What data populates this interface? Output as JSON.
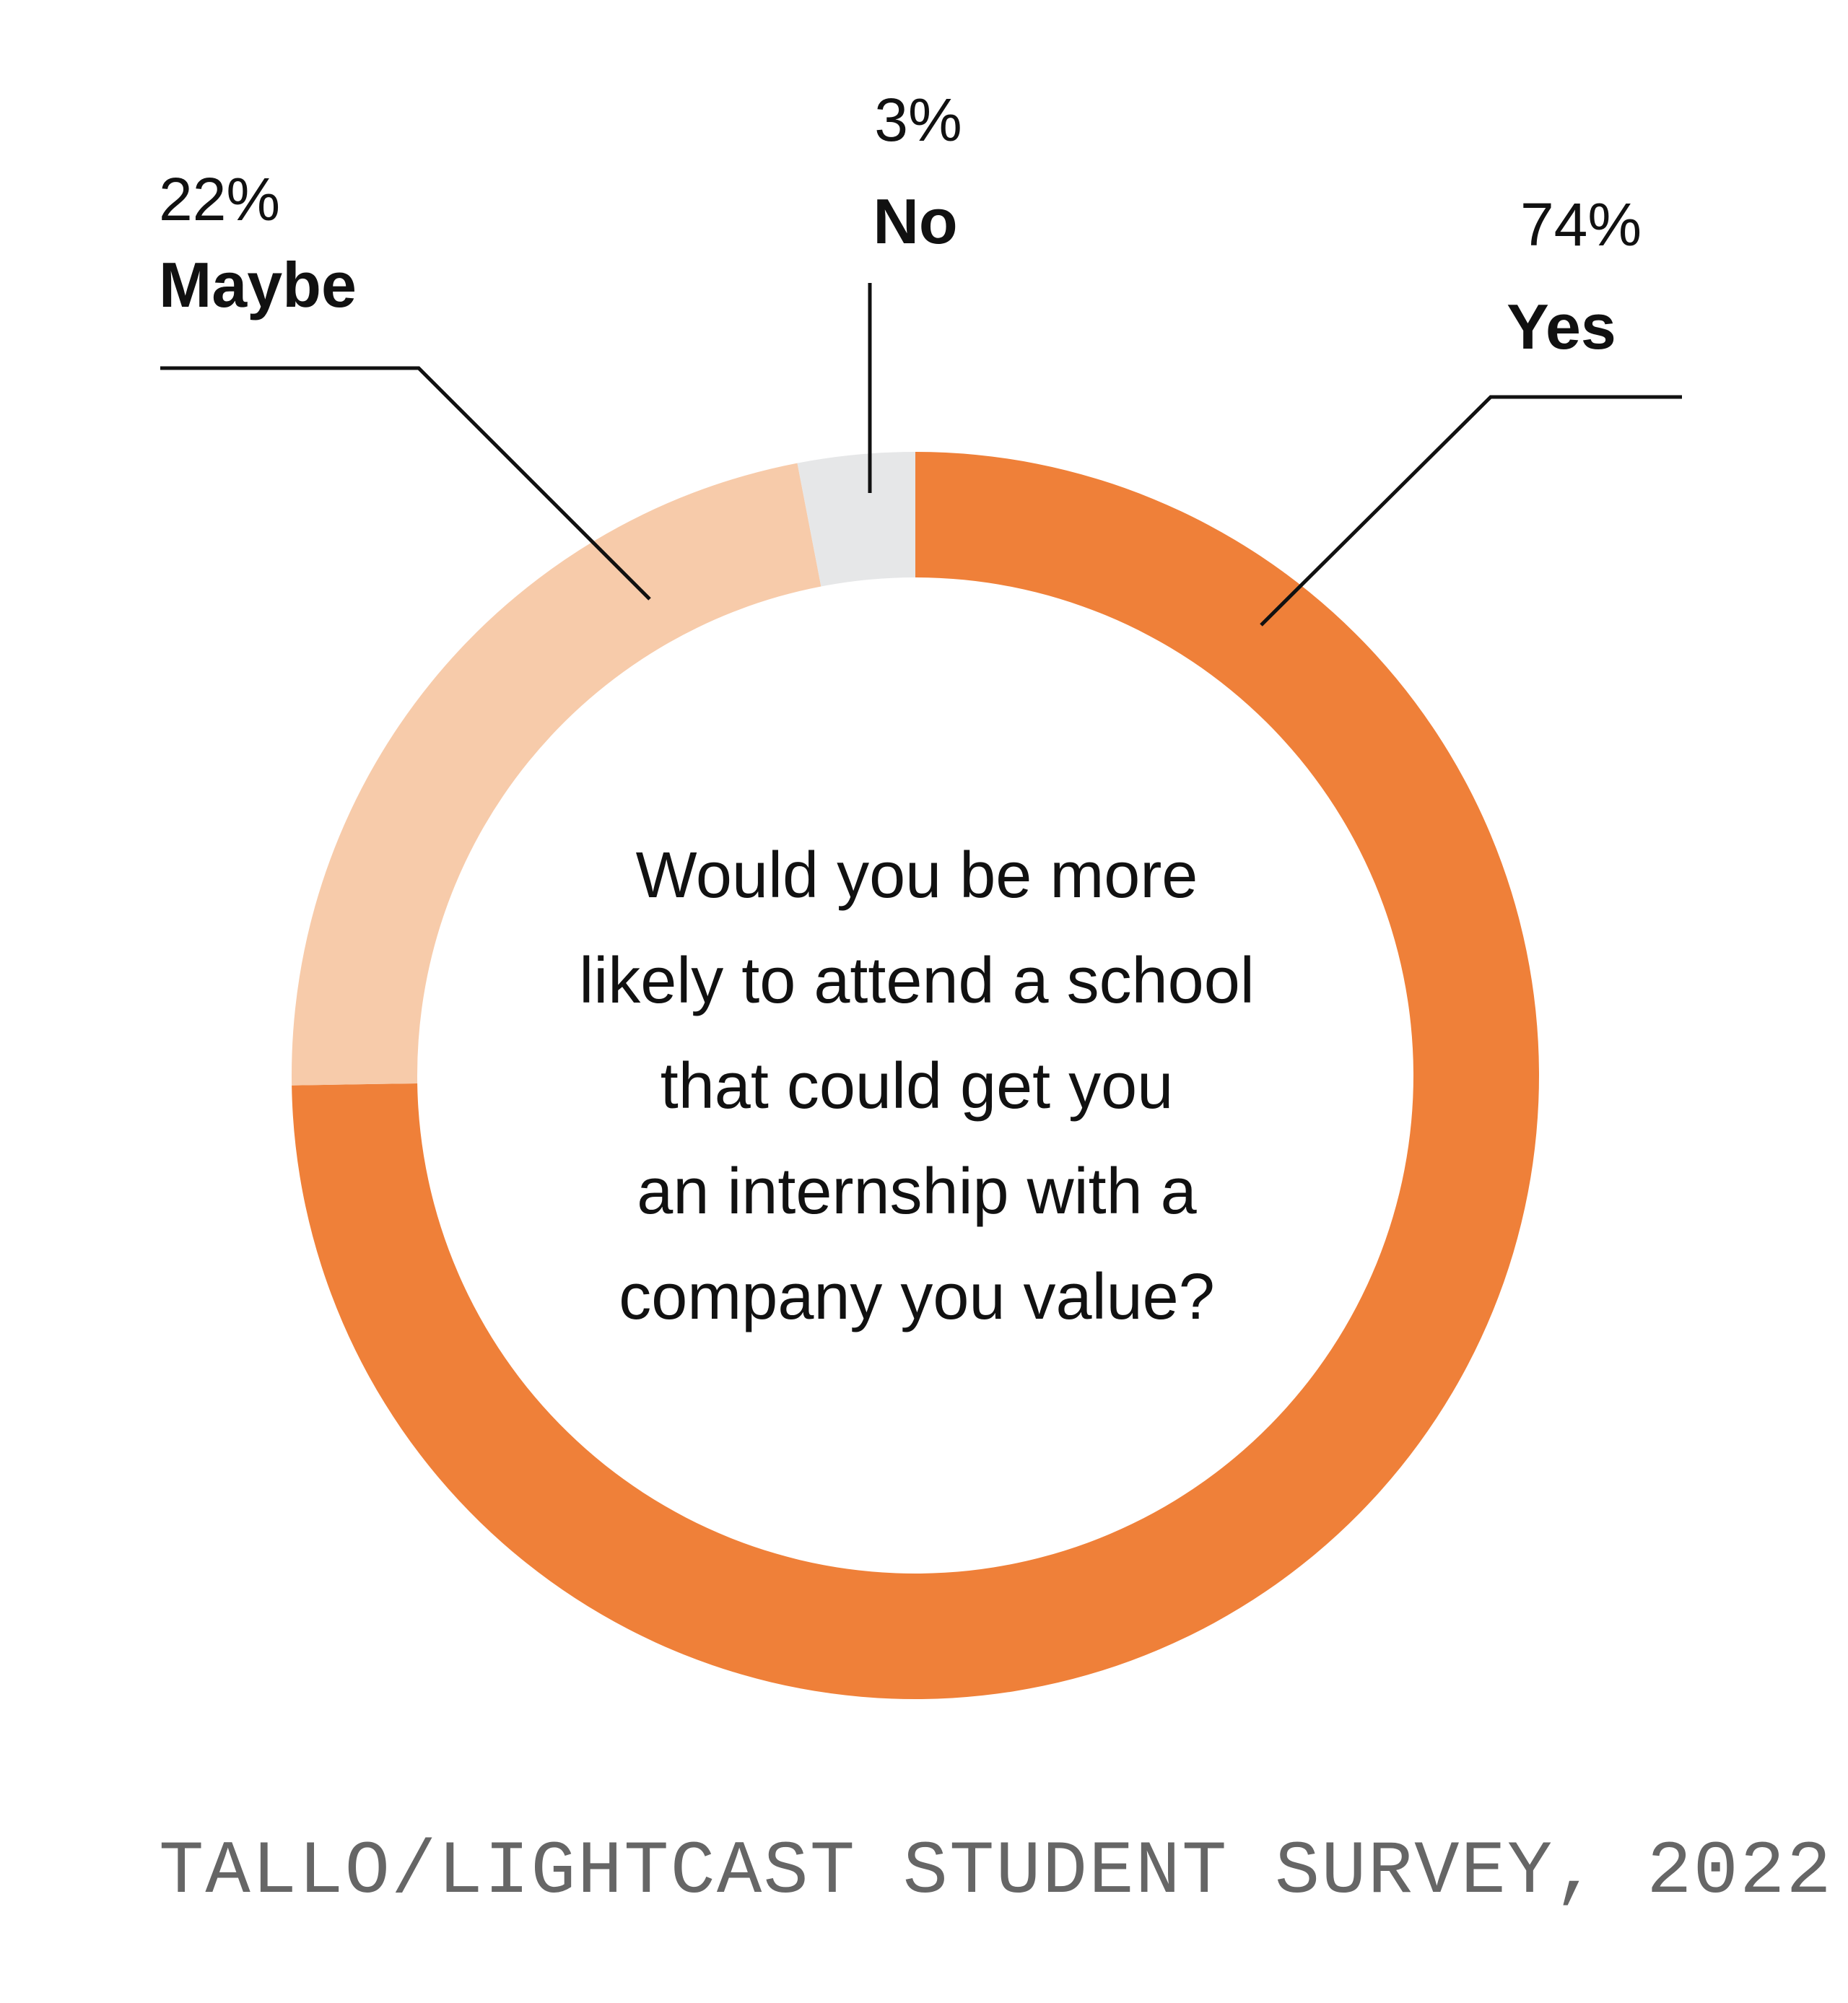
{
  "chart_data": {
    "type": "pie",
    "style": "donut",
    "center_text_lines": [
      "Would you be more",
      "likely to attend a school",
      "that could get you",
      "an internship with a",
      "company you value?"
    ],
    "slices": [
      {
        "label": "Yes",
        "value": 74,
        "value_label": "74%",
        "color": "#EF8039"
      },
      {
        "label": "Maybe",
        "value": 22,
        "value_label": "22%",
        "color": "#F7CBAA"
      },
      {
        "label": "No",
        "value": 3,
        "value_label": "3%",
        "color": "#E6E7E8"
      }
    ],
    "legend": "none",
    "grid": false
  },
  "source": "TALLO/LIGHTCAST STUDENT SURVEY, 2022"
}
